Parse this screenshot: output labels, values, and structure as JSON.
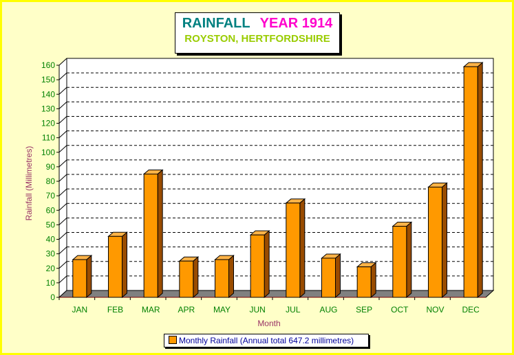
{
  "header": {
    "title": "RAINFALL",
    "year_label": "YEAR 1914",
    "subtitle": "ROYSTON, HERTFORDSHIRE"
  },
  "colors": {
    "background": "#ffffc8",
    "border": "#ffff00",
    "title": "#008080",
    "year": "#ff00cc",
    "subtitle": "#99cc00",
    "bar_front": "#ff9900",
    "bar_side": "#994c00",
    "bar_top": "#ffb347",
    "floor": "#808080",
    "axis_text": "#008000",
    "axis_title": "#993366",
    "legend_text": "#000099"
  },
  "chart_data": {
    "type": "bar",
    "title": "RAINFALL YEAR 1914",
    "subtitle": "ROYSTON, HERTFORDSHIRE",
    "categories": [
      "JAN",
      "FEB",
      "MAR",
      "APR",
      "MAY",
      "JUN",
      "JUL",
      "AUG",
      "SEP",
      "OCT",
      "NOV",
      "DEC"
    ],
    "series": [
      {
        "name": "Monthly Rainfall (Annual total 647.2 millimetres)",
        "values": [
          26,
          42,
          85,
          25,
          26,
          43,
          65,
          27,
          21,
          49,
          76,
          159
        ]
      }
    ],
    "xlabel": "Month",
    "ylabel": "Rainfall (Millimetres)",
    "ylim": [
      0,
      160
    ],
    "yticks": [
      0,
      10,
      20,
      30,
      40,
      50,
      60,
      70,
      80,
      90,
      100,
      110,
      120,
      130,
      140,
      150,
      160
    ],
    "grid": true,
    "legend": "bottom",
    "three_d": true
  }
}
